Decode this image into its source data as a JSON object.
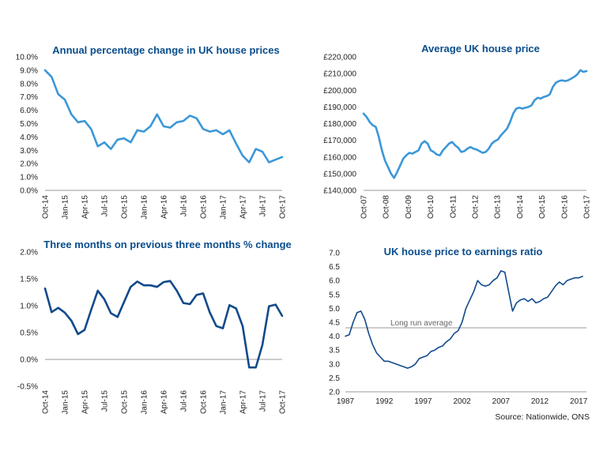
{
  "source_note": "Source: Nationwide, ONS",
  "colors": {
    "title": "#0a4d8c",
    "light_line": "#3b97d8",
    "dark_line": "#114a8b",
    "ref_line": "#9a9a9a",
    "axis": "#999999"
  },
  "chart_data": [
    {
      "id": "annual",
      "type": "line",
      "title": "Annual percentage change in UK house prices",
      "x_labels": [
        "Oct-14",
        "Jan-15",
        "Apr-15",
        "Jul-15",
        "Oct-15",
        "Jan-16",
        "Apr-16",
        "Jul-16",
        "Oct-16",
        "Jan-17",
        "Apr-17",
        "Jul-17",
        "Oct-17"
      ],
      "y_ticks": [
        "0.0%",
        "1.0%",
        "2.0%",
        "3.0%",
        "4.0%",
        "5.0%",
        "6.0%",
        "7.0%",
        "8.0%",
        "9.0%",
        "10.0%"
      ],
      "ylim": [
        0,
        10
      ],
      "series": [
        {
          "color": "#3b97d8",
          "values": [
            9.0,
            8.5,
            7.2,
            6.8,
            5.7,
            5.1,
            5.2,
            4.6,
            3.3,
            3.6,
            3.1,
            3.8,
            3.9,
            3.6,
            4.5,
            4.4,
            4.8,
            5.7,
            4.8,
            4.7,
            5.1,
            5.2,
            5.6,
            5.4,
            4.6,
            4.4,
            4.5,
            4.2,
            4.5,
            3.5,
            2.6,
            2.1,
            3.1,
            2.9,
            2.1,
            2.3,
            2.5
          ]
        }
      ]
    },
    {
      "id": "average",
      "type": "line",
      "title": "Average UK house price",
      "x_labels": [
        "Oct-07",
        "Oct-08",
        "Oct-09",
        "Oct-10",
        "Oct-11",
        "Oct-12",
        "Oct-13",
        "Oct-14",
        "Oct-15",
        "Oct-16",
        "Oct-17"
      ],
      "y_ticks": [
        "£140,000",
        "£150,000",
        "£160,000",
        "£170,000",
        "£180,000",
        "£190,000",
        "£200,000",
        "£210,000",
        "£220,000"
      ],
      "ylim": [
        140000,
        220000
      ],
      "series": [
        {
          "color": "#3b97d8",
          "values": [
            186000,
            184000,
            181000,
            179000,
            178000,
            172000,
            164000,
            158000,
            154000,
            150000,
            147500,
            151000,
            155000,
            159000,
            161000,
            162500,
            162000,
            163000,
            164000,
            168000,
            169500,
            168000,
            164000,
            163000,
            161500,
            161000,
            164000,
            166000,
            168000,
            169000,
            167000,
            165500,
            163000,
            163500,
            165000,
            166000,
            165000,
            164500,
            163500,
            162500,
            163000,
            165000,
            168000,
            169500,
            170500,
            173000,
            175000,
            177000,
            181000,
            186000,
            189000,
            189500,
            189000,
            189500,
            190000,
            191000,
            194000,
            195500,
            195000,
            196000,
            196500,
            197500,
            202000,
            204500,
            205500,
            206000,
            205500,
            206000,
            207000,
            208000,
            209500,
            212000,
            211000,
            211500
          ]
        }
      ]
    },
    {
      "id": "three_month",
      "type": "line",
      "title": "Three months on previous three months % change",
      "x_labels": [
        "Oct-14",
        "Jan-15",
        "Apr-15",
        "Jul-15",
        "Oct-15",
        "Jan-16",
        "Apr-16",
        "Jul-16",
        "Oct-16",
        "Jan-17",
        "Apr-17",
        "Jul-17",
        "Oct-17"
      ],
      "y_ticks": [
        "-0.5%",
        "0.0%",
        "0.5%",
        "1.0%",
        "1.5%",
        "2.0%"
      ],
      "ylim": [
        -0.5,
        2.0
      ],
      "series": [
        {
          "color": "#114a8b",
          "values": [
            1.32,
            0.88,
            0.96,
            0.87,
            0.72,
            0.47,
            0.55,
            0.92,
            1.28,
            1.12,
            0.86,
            0.79,
            1.07,
            1.35,
            1.45,
            1.38,
            1.38,
            1.35,
            1.44,
            1.46,
            1.28,
            1.05,
            1.03,
            1.2,
            1.23,
            0.88,
            0.62,
            0.58,
            1.01,
            0.95,
            0.62,
            -0.15,
            -0.15,
            0.27,
            0.99,
            1.02,
            0.81
          ]
        }
      ]
    },
    {
      "id": "ratio",
      "type": "line",
      "title": "UK house price to earnings ratio",
      "x_labels": [
        "1987",
        "1992",
        "1997",
        "2002",
        "2007",
        "2012",
        "2017"
      ],
      "x_tick_years": [
        1987,
        1992,
        1997,
        2002,
        2007,
        2012,
        2017
      ],
      "xlim": [
        1987,
        2018
      ],
      "y_ticks": [
        "2.0",
        "2.5",
        "3.0",
        "3.5",
        "4.0",
        "4.5",
        "5.0",
        "5.5",
        "6.0",
        "6.5",
        "7.0"
      ],
      "ylim": [
        2.0,
        7.0
      ],
      "annotation": {
        "text": "Long run average",
        "value": 4.3
      },
      "series": [
        {
          "color": "#114a8b",
          "points": [
            [
              1987,
              4.0
            ],
            [
              1987.5,
              4.05
            ],
            [
              1988,
              4.5
            ],
            [
              1988.5,
              4.85
            ],
            [
              1989,
              4.9
            ],
            [
              1989.5,
              4.6
            ],
            [
              1990,
              4.1
            ],
            [
              1990.5,
              3.7
            ],
            [
              1991,
              3.4
            ],
            [
              1991.5,
              3.25
            ],
            [
              1992,
              3.1
            ],
            [
              1992.5,
              3.1
            ],
            [
              1993,
              3.05
            ],
            [
              1993.5,
              3.0
            ],
            [
              1994,
              2.95
            ],
            [
              1994.5,
              2.9
            ],
            [
              1995,
              2.85
            ],
            [
              1995.5,
              2.9
            ],
            [
              1996,
              3.0
            ],
            [
              1996.5,
              3.2
            ],
            [
              1997,
              3.25
            ],
            [
              1997.5,
              3.3
            ],
            [
              1998,
              3.45
            ],
            [
              1998.5,
              3.5
            ],
            [
              1999,
              3.6
            ],
            [
              1999.5,
              3.65
            ],
            [
              2000,
              3.8
            ],
            [
              2000.5,
              3.9
            ],
            [
              2001,
              4.1
            ],
            [
              2001.5,
              4.2
            ],
            [
              2002,
              4.5
            ],
            [
              2002.5,
              5.0
            ],
            [
              2003,
              5.3
            ],
            [
              2003.5,
              5.6
            ],
            [
              2004,
              6.0
            ],
            [
              2004.5,
              5.85
            ],
            [
              2005,
              5.8
            ],
            [
              2005.5,
              5.85
            ],
            [
              2006,
              6.0
            ],
            [
              2006.5,
              6.1
            ],
            [
              2007,
              6.35
            ],
            [
              2007.5,
              6.3
            ],
            [
              2008,
              5.6
            ],
            [
              2008.5,
              4.9
            ],
            [
              2009,
              5.2
            ],
            [
              2009.5,
              5.3
            ],
            [
              2010,
              5.35
            ],
            [
              2010.5,
              5.25
            ],
            [
              2011,
              5.35
            ],
            [
              2011.5,
              5.2
            ],
            [
              2012,
              5.25
            ],
            [
              2012.5,
              5.35
            ],
            [
              2013,
              5.4
            ],
            [
              2013.5,
              5.6
            ],
            [
              2014,
              5.8
            ],
            [
              2014.5,
              5.95
            ],
            [
              2015,
              5.85
            ],
            [
              2015.5,
              6.0
            ],
            [
              2016,
              6.05
            ],
            [
              2016.5,
              6.1
            ],
            [
              2017,
              6.1
            ],
            [
              2017.5,
              6.15
            ]
          ]
        }
      ]
    }
  ]
}
